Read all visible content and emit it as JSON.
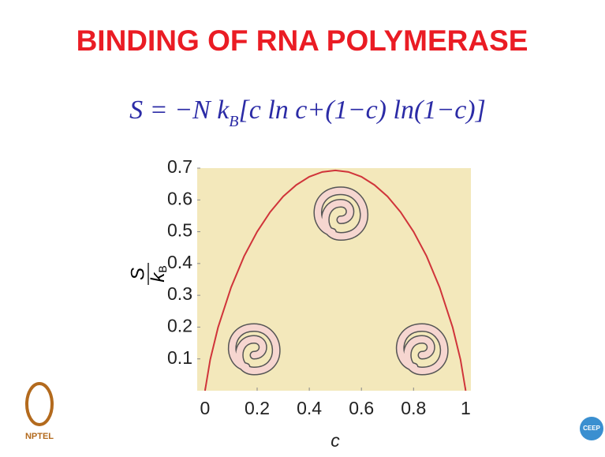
{
  "title": "BINDING OF RNA POLYMERASE",
  "equation": {
    "lhs": "S = −N k",
    "subscript": "B",
    "rhs": "[c ln c+(1−c) ln(1−c)]"
  },
  "logos": [
    "NPTEL",
    "CEEP"
  ],
  "chart_data": {
    "type": "line",
    "x_label": "c",
    "y_label": {
      "numerator": "S",
      "denominator": "k",
      "subscript": "B"
    },
    "x": [
      0,
      0.02,
      0.05,
      0.1,
      0.15,
      0.2,
      0.25,
      0.3,
      0.35,
      0.4,
      0.45,
      0.5,
      0.55,
      0.6,
      0.65,
      0.7,
      0.75,
      0.8,
      0.85,
      0.9,
      0.95,
      0.98,
      1
    ],
    "series": [
      {
        "color": "#d0343a",
        "values": [
          0,
          0.098,
          0.199,
          0.325,
          0.423,
          0.5,
          0.562,
          0.611,
          0.647,
          0.673,
          0.688,
          0.693,
          0.688,
          0.673,
          0.647,
          0.611,
          0.562,
          0.5,
          0.423,
          0.325,
          0.199,
          0.098,
          0
        ]
      }
    ],
    "xlim": [
      -0.03,
      1.02
    ],
    "ylim": [
      0,
      0.7
    ],
    "xticks": [
      0,
      0.2,
      0.4,
      0.6,
      0.8,
      1
    ],
    "yticks": [
      0.1,
      0.2,
      0.3,
      0.4,
      0.5,
      0.6,
      0.7
    ],
    "background": "#f3e8bb"
  }
}
